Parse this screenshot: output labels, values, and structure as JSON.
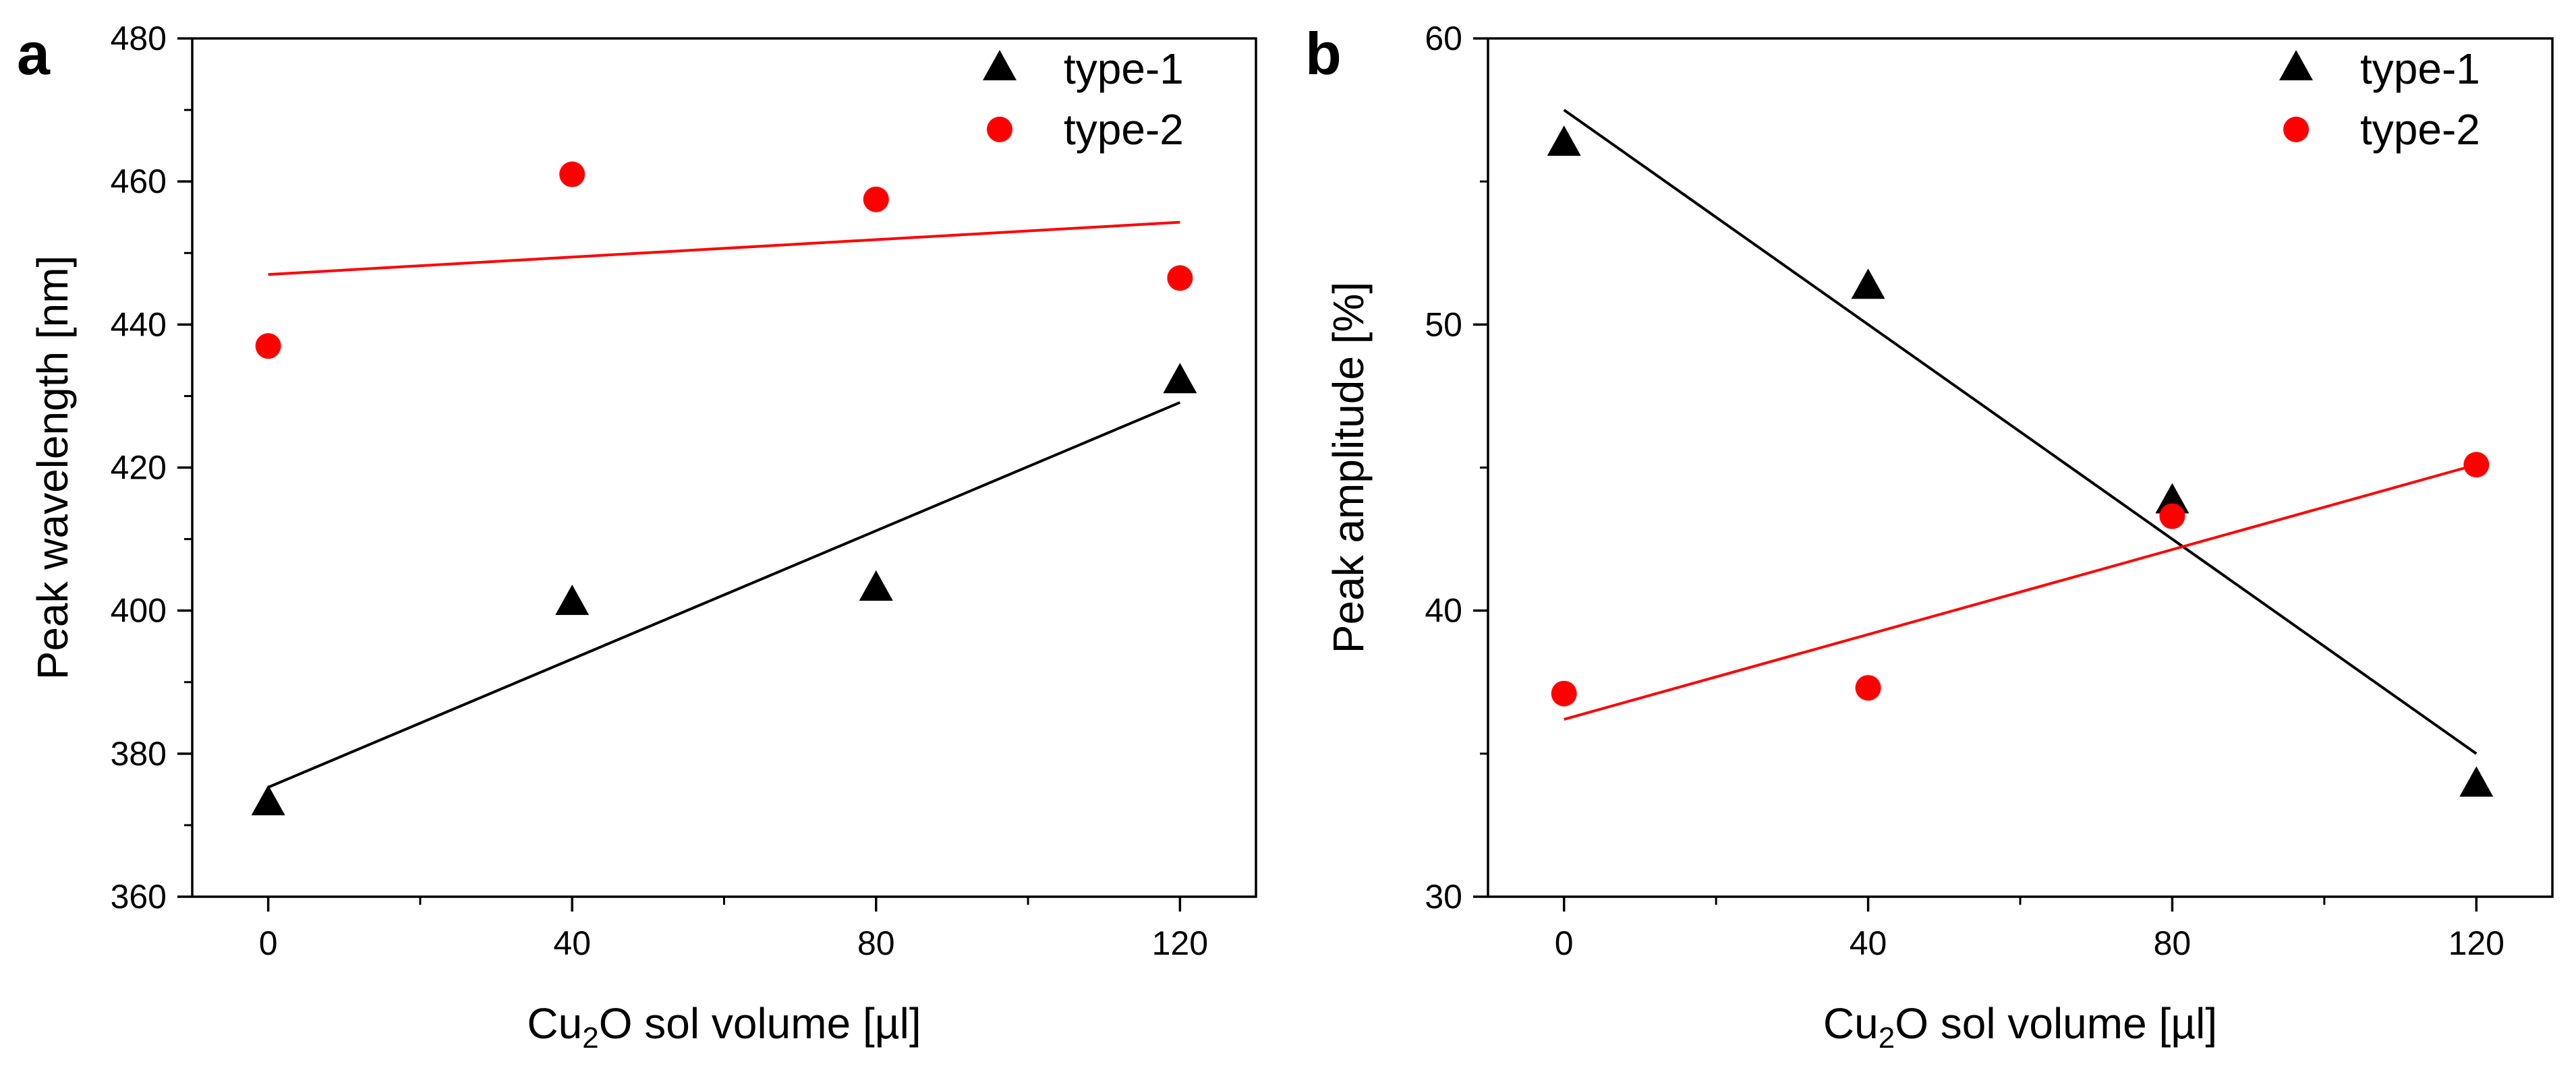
{
  "chart_data": [
    {
      "type": "scatter",
      "panel_label": "a",
      "title": "",
      "xlabel": {
        "pre": "Cu",
        "sub": "2",
        "post": "O sol volume [µl]"
      },
      "ylabel": "Peak wavelength [nm]",
      "xlim": [
        -10,
        130
      ],
      "ylim": [
        360,
        480
      ],
      "xticks": [
        0,
        40,
        80,
        120
      ],
      "xtick_labels": [
        "0",
        "40",
        "80",
        "120"
      ],
      "yticks": [
        360,
        380,
        400,
        420,
        440,
        460,
        480
      ],
      "ytick_labels": [
        "360",
        "380",
        "400",
        "420",
        "440",
        "460",
        "480"
      ],
      "grid": false,
      "legend_position": "top-right",
      "series": [
        {
          "name": "type-1",
          "marker": "triangle",
          "color": "#000000",
          "x": [
            0,
            40,
            80,
            120
          ],
          "y": [
            373,
            401,
            403,
            432
          ],
          "fit": {
            "x": [
              0,
              120
            ],
            "y": [
              375.3,
              429.1
            ]
          }
        },
        {
          "name": "type-2",
          "marker": "circle",
          "color": "#ff0000",
          "x": [
            0,
            40,
            80,
            120
          ],
          "y": [
            437,
            461,
            457.5,
            446.5
          ],
          "fit": {
            "x": [
              0,
              120
            ],
            "y": [
              447.0,
              454.3
            ]
          }
        }
      ]
    },
    {
      "type": "scatter",
      "panel_label": "b",
      "title": "",
      "xlabel": {
        "pre": "Cu",
        "sub": "2",
        "post": "O sol volume [µl]"
      },
      "ylabel": "Peak amplitude [%]",
      "xlim": [
        -10,
        130
      ],
      "ylim": [
        30,
        60
      ],
      "xticks": [
        0,
        40,
        80,
        120
      ],
      "xtick_labels": [
        "0",
        "40",
        "80",
        "120"
      ],
      "yticks": [
        30,
        40,
        50,
        60
      ],
      "ytick_labels": [
        "30",
        "40",
        "50",
        "60"
      ],
      "grid": false,
      "legend_position": "top-right",
      "series": [
        {
          "name": "type-1",
          "marker": "triangle",
          "color": "#000000",
          "x": [
            0,
            40,
            80,
            120
          ],
          "y": [
            56.3,
            51.3,
            43.8,
            33.9
          ],
          "fit": {
            "x": [
              0,
              120
            ],
            "y": [
              57.5,
              35.0
            ]
          }
        },
        {
          "name": "type-2",
          "marker": "circle",
          "color": "#ff0000",
          "x": [
            0,
            40,
            80,
            120
          ],
          "y": [
            37.1,
            37.3,
            43.3,
            45.1
          ],
          "fit": {
            "x": [
              0,
              120
            ],
            "y": [
              36.2,
              45.1
            ]
          }
        }
      ]
    }
  ]
}
